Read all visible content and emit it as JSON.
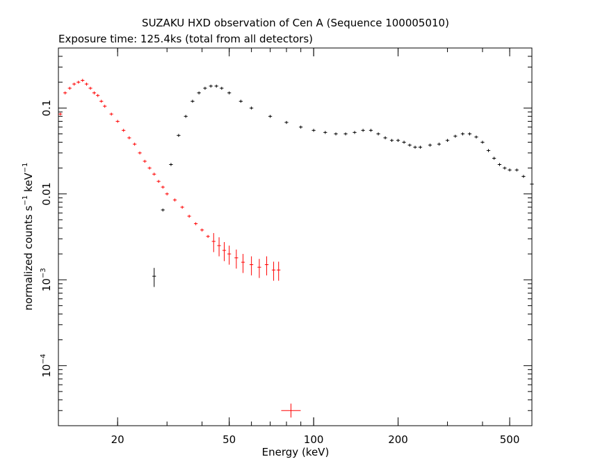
{
  "chart_data": {
    "type": "scatter",
    "title": "SUZAKU HXD observation of Cen A (Sequence 100005010)",
    "subtitle": "Exposure time: 125.4ks (total from all detectors)",
    "xlabel": "Energy (keV)",
    "ylabel": "normalized counts s",
    "ylabel_unit_1": "keV",
    "ylabel_sup1": "−1",
    "ylabel_sup2": "−1",
    "xscale": "log",
    "yscale": "log",
    "xlim": [
      12.3,
      600
    ],
    "ylim": [
      2e-05,
      0.5
    ],
    "x_ticks": [
      {
        "value": 20,
        "label": "20"
      },
      {
        "value": 50,
        "label": "50"
      },
      {
        "value": 100,
        "label": "100"
      },
      {
        "value": 200,
        "label": "200"
      },
      {
        "value": 500,
        "label": "500"
      }
    ],
    "y_ticks": [
      {
        "value": 0.1,
        "label": "0.1"
      },
      {
        "value": 0.01,
        "label": "0.01"
      },
      {
        "value": 0.001,
        "label": "10",
        "exp": "−3"
      },
      {
        "value": 0.0001,
        "label": "10",
        "exp": "−4"
      }
    ],
    "series": [
      {
        "color": "#ff0000",
        "x": [
          12.5,
          13.0,
          13.5,
          14.0,
          14.5,
          15.0,
          15.5,
          16.0,
          16.5,
          17.0,
          17.5,
          18.0,
          19.0,
          20.0,
          21.0,
          22.0,
          23.0,
          24.0,
          25.0,
          26.0,
          27.0,
          28.0,
          29.0,
          30.0,
          32.0,
          34.0,
          36.0,
          38.0,
          40.0,
          42.0,
          44.0,
          46.0,
          48.0,
          50.0,
          53.0,
          56.0,
          60.0,
          64.0,
          68.0,
          72.0,
          75.0,
          83.0
        ],
        "y": [
          0.085,
          0.15,
          0.17,
          0.19,
          0.2,
          0.21,
          0.19,
          0.17,
          0.15,
          0.14,
          0.12,
          0.105,
          0.085,
          0.07,
          0.055,
          0.045,
          0.038,
          0.03,
          0.024,
          0.02,
          0.017,
          0.014,
          0.012,
          0.01,
          0.0085,
          0.007,
          0.0055,
          0.0045,
          0.0038,
          0.0032,
          0.0028,
          0.0025,
          0.0022,
          0.002,
          0.0018,
          0.0016,
          0.0015,
          0.0014,
          0.0015,
          0.0013,
          0.0013,
          3e-05
        ]
      },
      {
        "color": "#000000",
        "x": [
          27.0,
          29.0,
          31.0,
          33.0,
          35.0,
          37.0,
          39.0,
          41.0,
          43.0,
          45.0,
          47.0,
          50.0,
          55.0,
          60.0,
          70.0,
          80.0,
          90.0,
          100.0,
          110.0,
          120.0,
          130.0,
          140.0,
          150.0,
          160.0,
          170.0,
          180.0,
          190.0,
          200.0,
          210.0,
          220.0,
          230.0,
          240.0,
          260.0,
          280.0,
          300.0,
          320.0,
          340.0,
          360.0,
          380.0,
          400.0,
          420.0,
          440.0,
          460.0,
          480.0,
          500.0,
          530.0,
          560.0,
          600.0
        ],
        "y": [
          0.0011,
          0.0065,
          0.022,
          0.048,
          0.08,
          0.12,
          0.15,
          0.17,
          0.18,
          0.18,
          0.17,
          0.15,
          0.12,
          0.1,
          0.08,
          0.068,
          0.06,
          0.055,
          0.052,
          0.05,
          0.05,
          0.052,
          0.055,
          0.055,
          0.05,
          0.045,
          0.042,
          0.042,
          0.04,
          0.037,
          0.035,
          0.035,
          0.037,
          0.038,
          0.042,
          0.047,
          0.05,
          0.05,
          0.046,
          0.04,
          0.032,
          0.026,
          0.022,
          0.02,
          0.019,
          0.019,
          0.016,
          0.013
        ]
      }
    ]
  }
}
